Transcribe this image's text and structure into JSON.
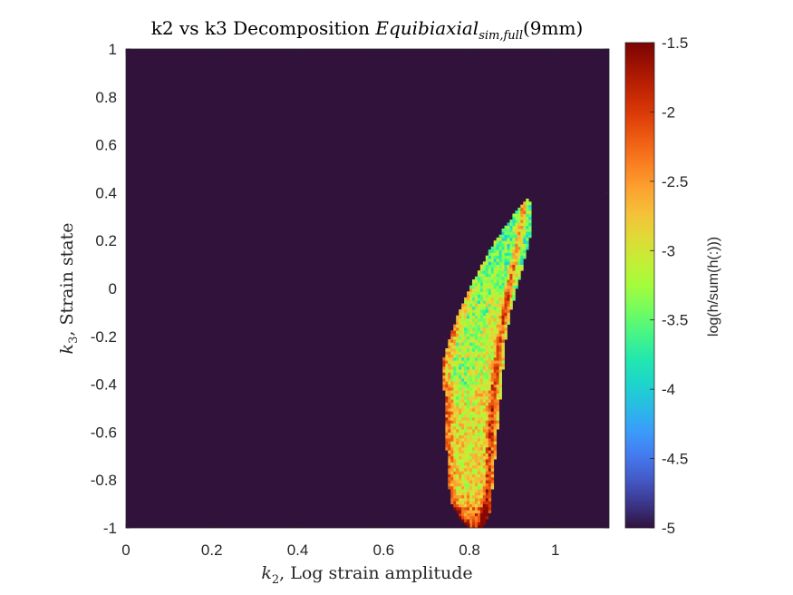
{
  "chart_data": {
    "type": "heatmap",
    "title_main": "k2 vs k3 Decomposition ",
    "title_math": "Equibiaxial",
    "title_subscript": "sim,full",
    "title_suffix": "(9mm)",
    "xlabel_sym": "k",
    "xlabel_sub": "2",
    "xlabel_text": ", Log strain amplitude",
    "ylabel_sym": "k",
    "ylabel_sub": "3",
    "ylabel_text": ", Strain state",
    "xlim": [
      0,
      1.125
    ],
    "ylim": [
      -1,
      1
    ],
    "x_ticks": [
      "0",
      "0.2",
      "0.4",
      "0.6",
      "0.8",
      "1"
    ],
    "x_tick_values": [
      0,
      0.2,
      0.4,
      0.6,
      0.8,
      1.0
    ],
    "y_ticks": [
      "1",
      "0.8",
      "0.6",
      "0.4",
      "0.2",
      "0",
      "-0.2",
      "-0.4",
      "-0.6",
      "-0.8",
      "-1"
    ],
    "y_tick_values": [
      1,
      0.8,
      0.6,
      0.4,
      0.2,
      0,
      -0.2,
      -0.4,
      -0.6,
      -0.8,
      -1
    ],
    "colorbar": {
      "label": "log(h/sum(h(:)))",
      "range": [
        -5,
        -1.5
      ],
      "ticks": [
        "-1.5",
        "-2",
        "-2.5",
        "-3",
        "-3.5",
        "-4",
        "-4.5",
        "-5"
      ],
      "tick_values": [
        -1.5,
        -2,
        -2.5,
        -3,
        -3.5,
        -4,
        -4.5,
        -5
      ],
      "colormap": "turbo"
    },
    "background_value": -5,
    "density_band": {
      "bottom_y": -1.0,
      "top_y": 0.37,
      "left_edge_k2": [
        [
          -1.0,
          0.795
        ],
        [
          -0.95,
          0.775
        ],
        [
          -0.9,
          0.76
        ],
        [
          -0.8,
          0.75
        ],
        [
          -0.6,
          0.745
        ],
        [
          -0.4,
          0.74
        ],
        [
          -0.33,
          0.735
        ],
        [
          -0.2,
          0.755
        ],
        [
          -0.1,
          0.775
        ],
        [
          0.0,
          0.8
        ],
        [
          0.1,
          0.83
        ],
        [
          0.2,
          0.86
        ],
        [
          0.3,
          0.9
        ],
        [
          0.37,
          0.93
        ]
      ],
      "right_edge_k2": [
        [
          -1.0,
          0.83
        ],
        [
          -0.95,
          0.845
        ],
        [
          -0.9,
          0.85
        ],
        [
          -0.8,
          0.855
        ],
        [
          -0.6,
          0.865
        ],
        [
          -0.4,
          0.875
        ],
        [
          -0.2,
          0.885
        ],
        [
          -0.1,
          0.895
        ],
        [
          0.0,
          0.91
        ],
        [
          0.1,
          0.925
        ],
        [
          0.2,
          0.94
        ],
        [
          0.3,
          0.945
        ],
        [
          0.37,
          0.94
        ]
      ],
      "inner_ridge_k2": [
        [
          -1.0,
          0.83
        ],
        [
          -0.8,
          0.845
        ],
        [
          -0.6,
          0.85
        ],
        [
          -0.4,
          0.858
        ],
        [
          -0.2,
          0.872
        ],
        [
          0.0,
          0.892
        ],
        [
          0.2,
          0.915
        ],
        [
          0.3,
          0.925
        ]
      ]
    }
  }
}
